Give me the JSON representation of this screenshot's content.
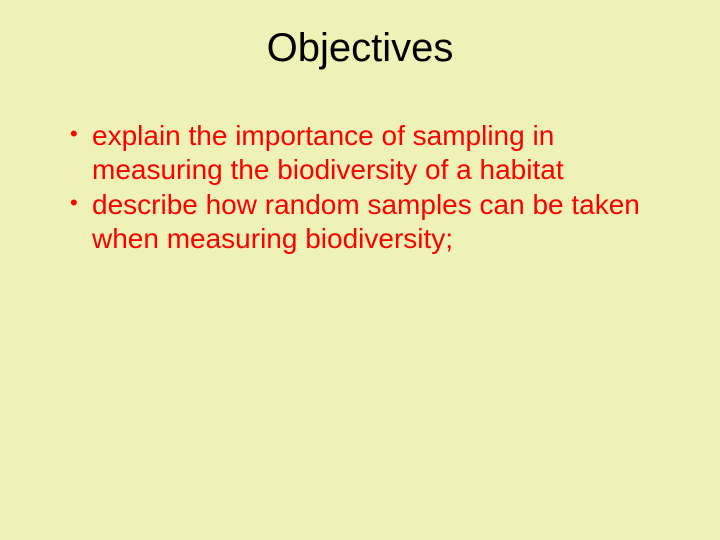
{
  "slide": {
    "background_color": "#eef2b6",
    "title": {
      "text": "Objectives",
      "color": "#000000",
      "fontsize_pt": 40,
      "font_weight": 400,
      "align": "center"
    },
    "bullets": {
      "text_color": "#ff0000",
      "bullet_marker_color": "#ff0000",
      "fontsize_pt": 28,
      "line_height": 1.2,
      "items": [
        "explain the importance of sampling in measuring the biodiversity of a habitat",
        "describe how random samples can be taken when measuring biodiversity;"
      ]
    }
  }
}
